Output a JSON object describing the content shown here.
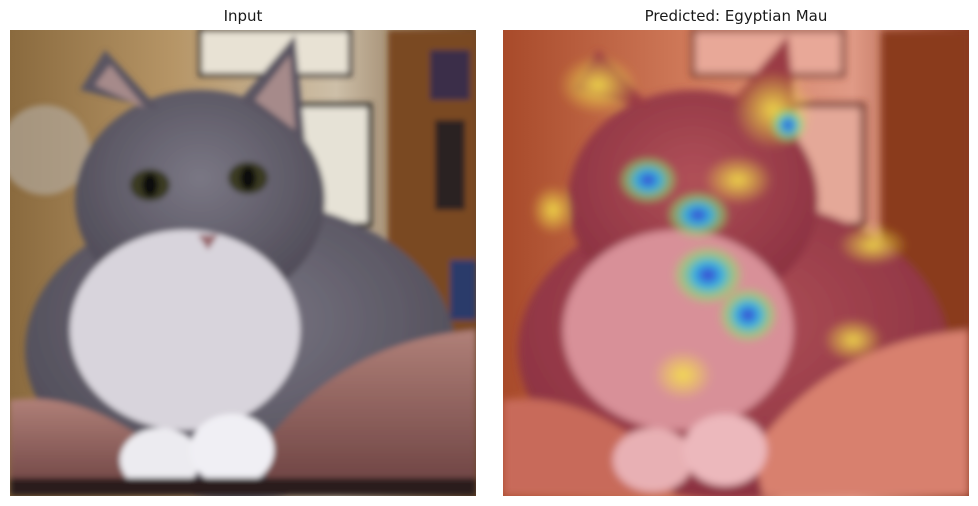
{
  "figure": {
    "left_panel": {
      "title": "Input"
    },
    "right_panel": {
      "title": "Predicted: Egyptian Mau"
    }
  },
  "colors": {
    "background": "#ffffff",
    "title_text": "#1a1a1a",
    "overlay_hot": "#e8392a",
    "overlay_warm": "#f2d23a",
    "overlay_cool": "#2fb8e6",
    "overlay_cold": "#3a3ad6"
  }
}
